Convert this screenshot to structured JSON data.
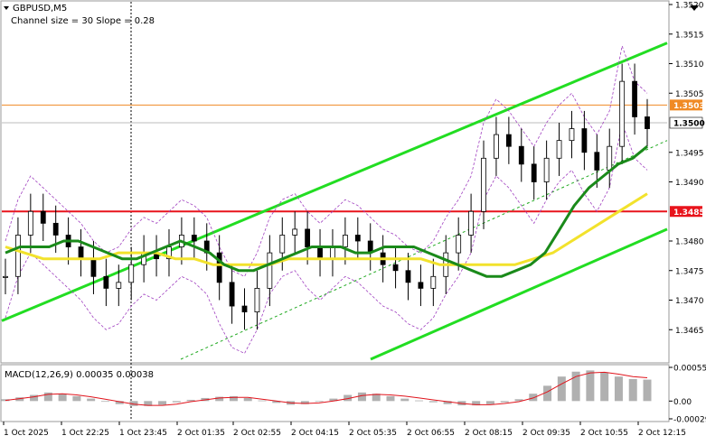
{
  "header": {
    "symbol": "GBPUSD,M5",
    "indicator_note": "Channel size = 30 Slope = 0.28"
  },
  "chart_data": [
    {
      "type": "line",
      "title": "GBPUSD,M5",
      "subtitle": "Channel size = 30 Slope = 0.28",
      "ylim": [
        1.346,
        1.352
      ],
      "y_ticks": [
        1.352,
        1.3515,
        1.351,
        1.3505,
        1.3495,
        1.349,
        1.348,
        1.3475,
        1.347,
        1.3465
      ],
      "x_ticks": [
        "1 Oct 2025",
        "1 Oct 22:25",
        "1 Oct 23:45",
        "2 Oct 01:35",
        "2 Oct 02:55",
        "2 Oct 04:15",
        "2 Oct 05:35",
        "2 Oct 06:55",
        "2 Oct 08:15",
        "2 Oct 09:35",
        "2 Oct 10:55",
        "2 Oct 12:15"
      ],
      "price_tags": [
        {
          "label": "1.3503",
          "value": 1.3503,
          "color": "#ffffff",
          "bg": "#f08a24"
        },
        {
          "label": "1.3500",
          "value": 1.35,
          "color": "#000000",
          "bg": "#ffffff"
        },
        {
          "label": "1.3485",
          "value": 1.3485,
          "color": "#ffffff",
          "bg": "#e8141c"
        }
      ],
      "horizontal_lines": [
        {
          "value": 1.3503,
          "color": "#f08a24"
        },
        {
          "value": 1.3485,
          "color": "#e8141c"
        }
      ],
      "series": [
        {
          "values": [
            1.3474,
            1.3481,
            1.3485,
            1.3483,
            1.3481,
            1.3479,
            1.3477,
            1.3474,
            1.3472,
            1.3473,
            1.3476,
            1.3478,
            1.3477,
            1.3479,
            1.3481,
            1.348,
            1.3478,
            1.3473,
            1.3469,
            1.3468,
            1.3472,
            1.3478,
            1.3481,
            1.3482,
            1.3479,
            1.3477,
            1.3479,
            1.3481,
            1.348,
            1.3478,
            1.3476,
            1.3475,
            1.3473,
            1.3472,
            1.3474,
            1.3478,
            1.3481,
            1.3485,
            1.3494,
            1.3498,
            1.3496,
            1.3493,
            1.349,
            1.3494,
            1.3497,
            1.3499,
            1.3495,
            1.3492,
            1.3496,
            1.3507,
            1.3501,
            1.3499
          ]
        },
        {
          "name": "",
          "color": "#1a8a1a",
          "values": [
            1.3478,
            1.3479,
            1.3479,
            1.3479,
            1.348,
            1.348,
            1.3479,
            1.3478,
            1.3477,
            1.3477,
            1.3478,
            1.3479,
            1.348,
            1.3479,
            1.3478,
            1.3476,
            1.3475,
            1.3475,
            1.3476,
            1.3477,
            1.3478,
            1.3479,
            1.3479,
            1.3479,
            1.3478,
            1.3478,
            1.3479,
            1.3479,
            1.3479,
            1.3478,
            1.3477,
            1.3476,
            1.3475,
            1.3474,
            1.3474,
            1.3475,
            1.3476,
            1.3478,
            1.3482,
            1.3486,
            1.3489,
            1.3491,
            1.3493,
            1.3494,
            1.3496
          ]
        },
        {
          "name": "",
          "color": "#f2e22c",
          "values": [
            1.3479,
            1.3478,
            1.3477,
            1.3477,
            1.3477,
            1.3477,
            1.3478,
            1.3478,
            1.3478,
            1.3477,
            1.3477,
            1.3476,
            1.3476,
            1.3476,
            1.3476,
            1.3477,
            1.3477,
            1.3477,
            1.3477,
            1.3477,
            1.3477,
            1.3477,
            1.3477,
            1.3476,
            1.3476,
            1.3476,
            1.3476,
            1.3476,
            1.3477,
            1.3478,
            1.348,
            1.3482,
            1.3484,
            1.3486,
            1.3488
          ]
        }
      ]
    },
    {
      "type": "bar",
      "title": "MACD(12,26,9) 0.00035 0.00038",
      "ylim": [
        -0.00029,
        0.00055
      ],
      "y_ticks": [
        0.00055,
        0.0,
        -0.00029
      ],
      "y_tick_labels": [
        "0.00055",
        "0.00",
        "-0.00029"
      ],
      "series": [
        {
          "name": "MACD",
          "values": [
            3e-05,
            6e-05,
            0.0001,
            0.00014,
            0.00012,
            8e-05,
            4e-05,
            0.0,
            -5e-05,
            -8e-05,
            -8e-05,
            -6e-05,
            -2e-05,
            2e-05,
            5e-05,
            7e-05,
            8e-05,
            5e-05,
            1e-05,
            -3e-05,
            -6e-05,
            -5e-05,
            -1e-05,
            4e-05,
            0.0001,
            0.00014,
            0.00012,
            8e-05,
            4e-05,
            1e-05,
            -2e-05,
            -5e-05,
            -7e-05,
            -7e-05,
            -5e-05,
            -2e-05,
            3e-05,
            0.00012,
            0.00025,
            0.0004,
            0.00048,
            0.0005,
            0.00047,
            0.0004,
            0.00036,
            0.00035
          ]
        },
        {
          "name": "Signal",
          "values": [
            1e-05,
            4e-05,
            7e-05,
            0.00011,
            0.00012,
            0.0001,
            7e-05,
            3e-05,
            -1e-05,
            -5e-05,
            -7e-05,
            -7e-05,
            -5e-05,
            -1e-05,
            2e-05,
            5e-05,
            6e-05,
            6e-05,
            3e-05,
            0.0,
            -3e-05,
            -4e-05,
            -3e-05,
            0.0,
            4e-05,
            9e-05,
            0.00011,
            0.0001,
            8e-05,
            5e-05,
            2e-05,
            -1e-05,
            -4e-05,
            -6e-05,
            -6e-05,
            -4e-05,
            -1e-05,
            5e-05,
            0.00015,
            0.00028,
            0.0004,
            0.00046,
            0.00047,
            0.00044,
            0.0004,
            0.00038
          ]
        }
      ]
    }
  ],
  "colors": {
    "upper_channel": "#22dd22",
    "mid_channel": "#22aa22",
    "candles": "#000000",
    "bollinger": "#a040c0",
    "macd_hist": "#b0b0b0",
    "macd_signal": "#e0141c"
  }
}
